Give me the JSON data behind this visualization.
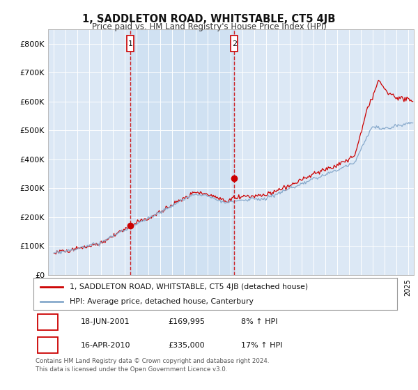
{
  "title": "1, SADDLETON ROAD, WHITSTABLE, CT5 4JB",
  "subtitle": "Price paid vs. HM Land Registry's House Price Index (HPI)",
  "background_color": "#ffffff",
  "plot_bg_color": "#dce8f5",
  "grid_color": "#ffffff",
  "red_color": "#cc0000",
  "blue_color": "#88aacc",
  "ylim": [
    0,
    850000
  ],
  "yticks": [
    0,
    100000,
    200000,
    300000,
    400000,
    500000,
    600000,
    700000,
    800000
  ],
  "ytick_labels": [
    "£0",
    "£100K",
    "£200K",
    "£300K",
    "£400K",
    "£500K",
    "£600K",
    "£700K",
    "£800K"
  ],
  "sale1_year": 2001.46,
  "sale1_price": 169995,
  "sale2_year": 2010.29,
  "sale2_price": 335000,
  "legend_line1": "1, SADDLETON ROAD, WHITSTABLE, CT5 4JB (detached house)",
  "legend_line2": "HPI: Average price, detached house, Canterbury",
  "table_row1": [
    "1",
    "18-JUN-2001",
    "£169,995",
    "8% ↑ HPI"
  ],
  "table_row2": [
    "2",
    "16-APR-2010",
    "£335,000",
    "17% ↑ HPI"
  ],
  "footnote": "Contains HM Land Registry data © Crown copyright and database right 2024.\nThis data is licensed under the Open Government Licence v3.0.",
  "xmin": 1994.5,
  "xmax": 2025.5
}
